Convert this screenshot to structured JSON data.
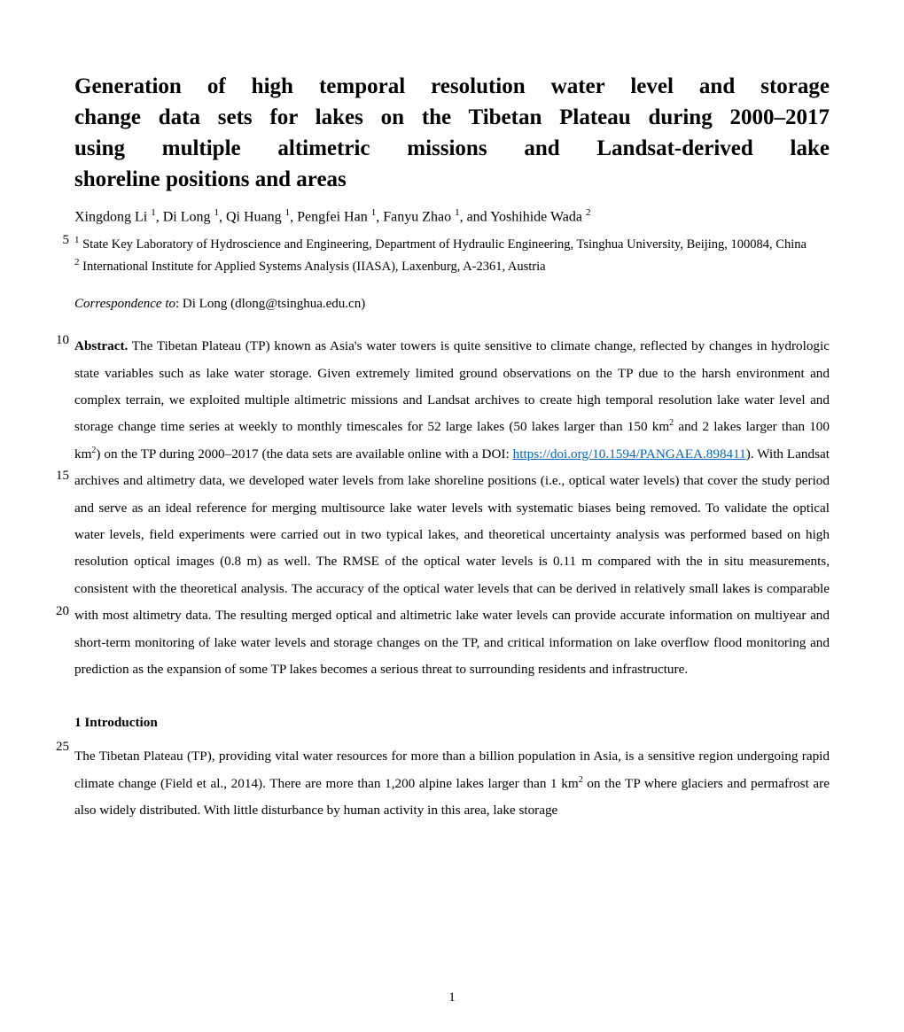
{
  "title_lines": [
    "Generation of high temporal resolution water level and storage",
    "change data sets for lakes on the Tibetan Plateau during 2000–2017",
    "using multiple altimetric missions and Landsat-derived lake",
    "shoreline positions and areas"
  ],
  "authors_html": "Xingdong Li <span class='sup'>1</span>, Di Long <span class='sup'>1</span>, Qi Huang <span class='sup'>1</span>, Pengfei Han <span class='sup'>1</span>, Fanyu Zhao <span class='sup'>1</span>, and Yoshihide Wada <span class='sup'>2</span>",
  "affiliations": [
    "<span class='sup'>1</span> State Key Laboratory of Hydroscience and Engineering, Department of Hydraulic Engineering, Tsinghua University, Beijing, 100084, China",
    "<span class='sup'>2</span> International Institute for Applied Systems Analysis (IIASA), Laxenburg, A-2361, Austria"
  ],
  "correspondence_label": "Correspondence to",
  "correspondence_text": ": Di Long (dlong@tsinghua.edu.cn)",
  "abstract_label": "Abstract.",
  "abstract_pre": " The Tibetan Plateau (TP) known as Asia's water towers is quite sensitive to climate change, reflected by changes in hydrologic state variables such as lake water storage. Given extremely limited ground observations on the TP due to the harsh environment and complex terrain, we exploited multiple altimetric missions and Landsat archives to create high temporal resolution lake water level and storage change time series at weekly to monthly timescales for 52 large lakes (50 lakes larger than 150 km<span class='sup2'>2</span> and 2 lakes larger than 100 km<span class='sup2'>2</span>) on the TP during 2000–2017 (the data sets are available online with a DOI: ",
  "doi_url": "https://doi.org/10.1594/PANGAEA.898411",
  "abstract_post": "). With Landsat archives and altimetry data, we developed water levels from lake shoreline positions (i.e., optical water levels) that cover the study period and serve as an ideal reference for merging multisource lake water levels with systematic biases being removed. To validate the optical water levels, field experiments were carried out in two typical lakes, and theoretical uncertainty analysis was performed based on high resolution optical images (0.8 m) as well. The RMSE of the optical water levels is 0.11 m compared with the in situ measurements, consistent with the theoretical analysis. The accuracy of the optical water levels that can be derived in relatively small lakes is comparable with most altimetry data. The resulting merged optical and altimetric lake water levels can provide accurate information on multiyear and short-term monitoring of lake water levels and storage changes on the TP, and critical information on lake overflow flood monitoring and prediction as the expansion of some TP lakes becomes a serious threat to surrounding residents and infrastructure.",
  "section_heading": "1 Introduction",
  "intro_text": "The Tibetan Plateau (TP), providing vital water resources for more than a billion population in Asia, is a sensitive region undergoing rapid climate change (Field et al., 2014). There are more than 1,200 alpine lakes larger than 1 km<span class='sup2'>2</span> on the TP where glaciers and permafrost are also widely distributed. With little disturbance by human activity in this area, lake storage",
  "line_numbers": {
    "5": 183,
    "10": 296,
    "15": 449,
    "20": 602,
    "25": 755
  },
  "page_number": "1"
}
